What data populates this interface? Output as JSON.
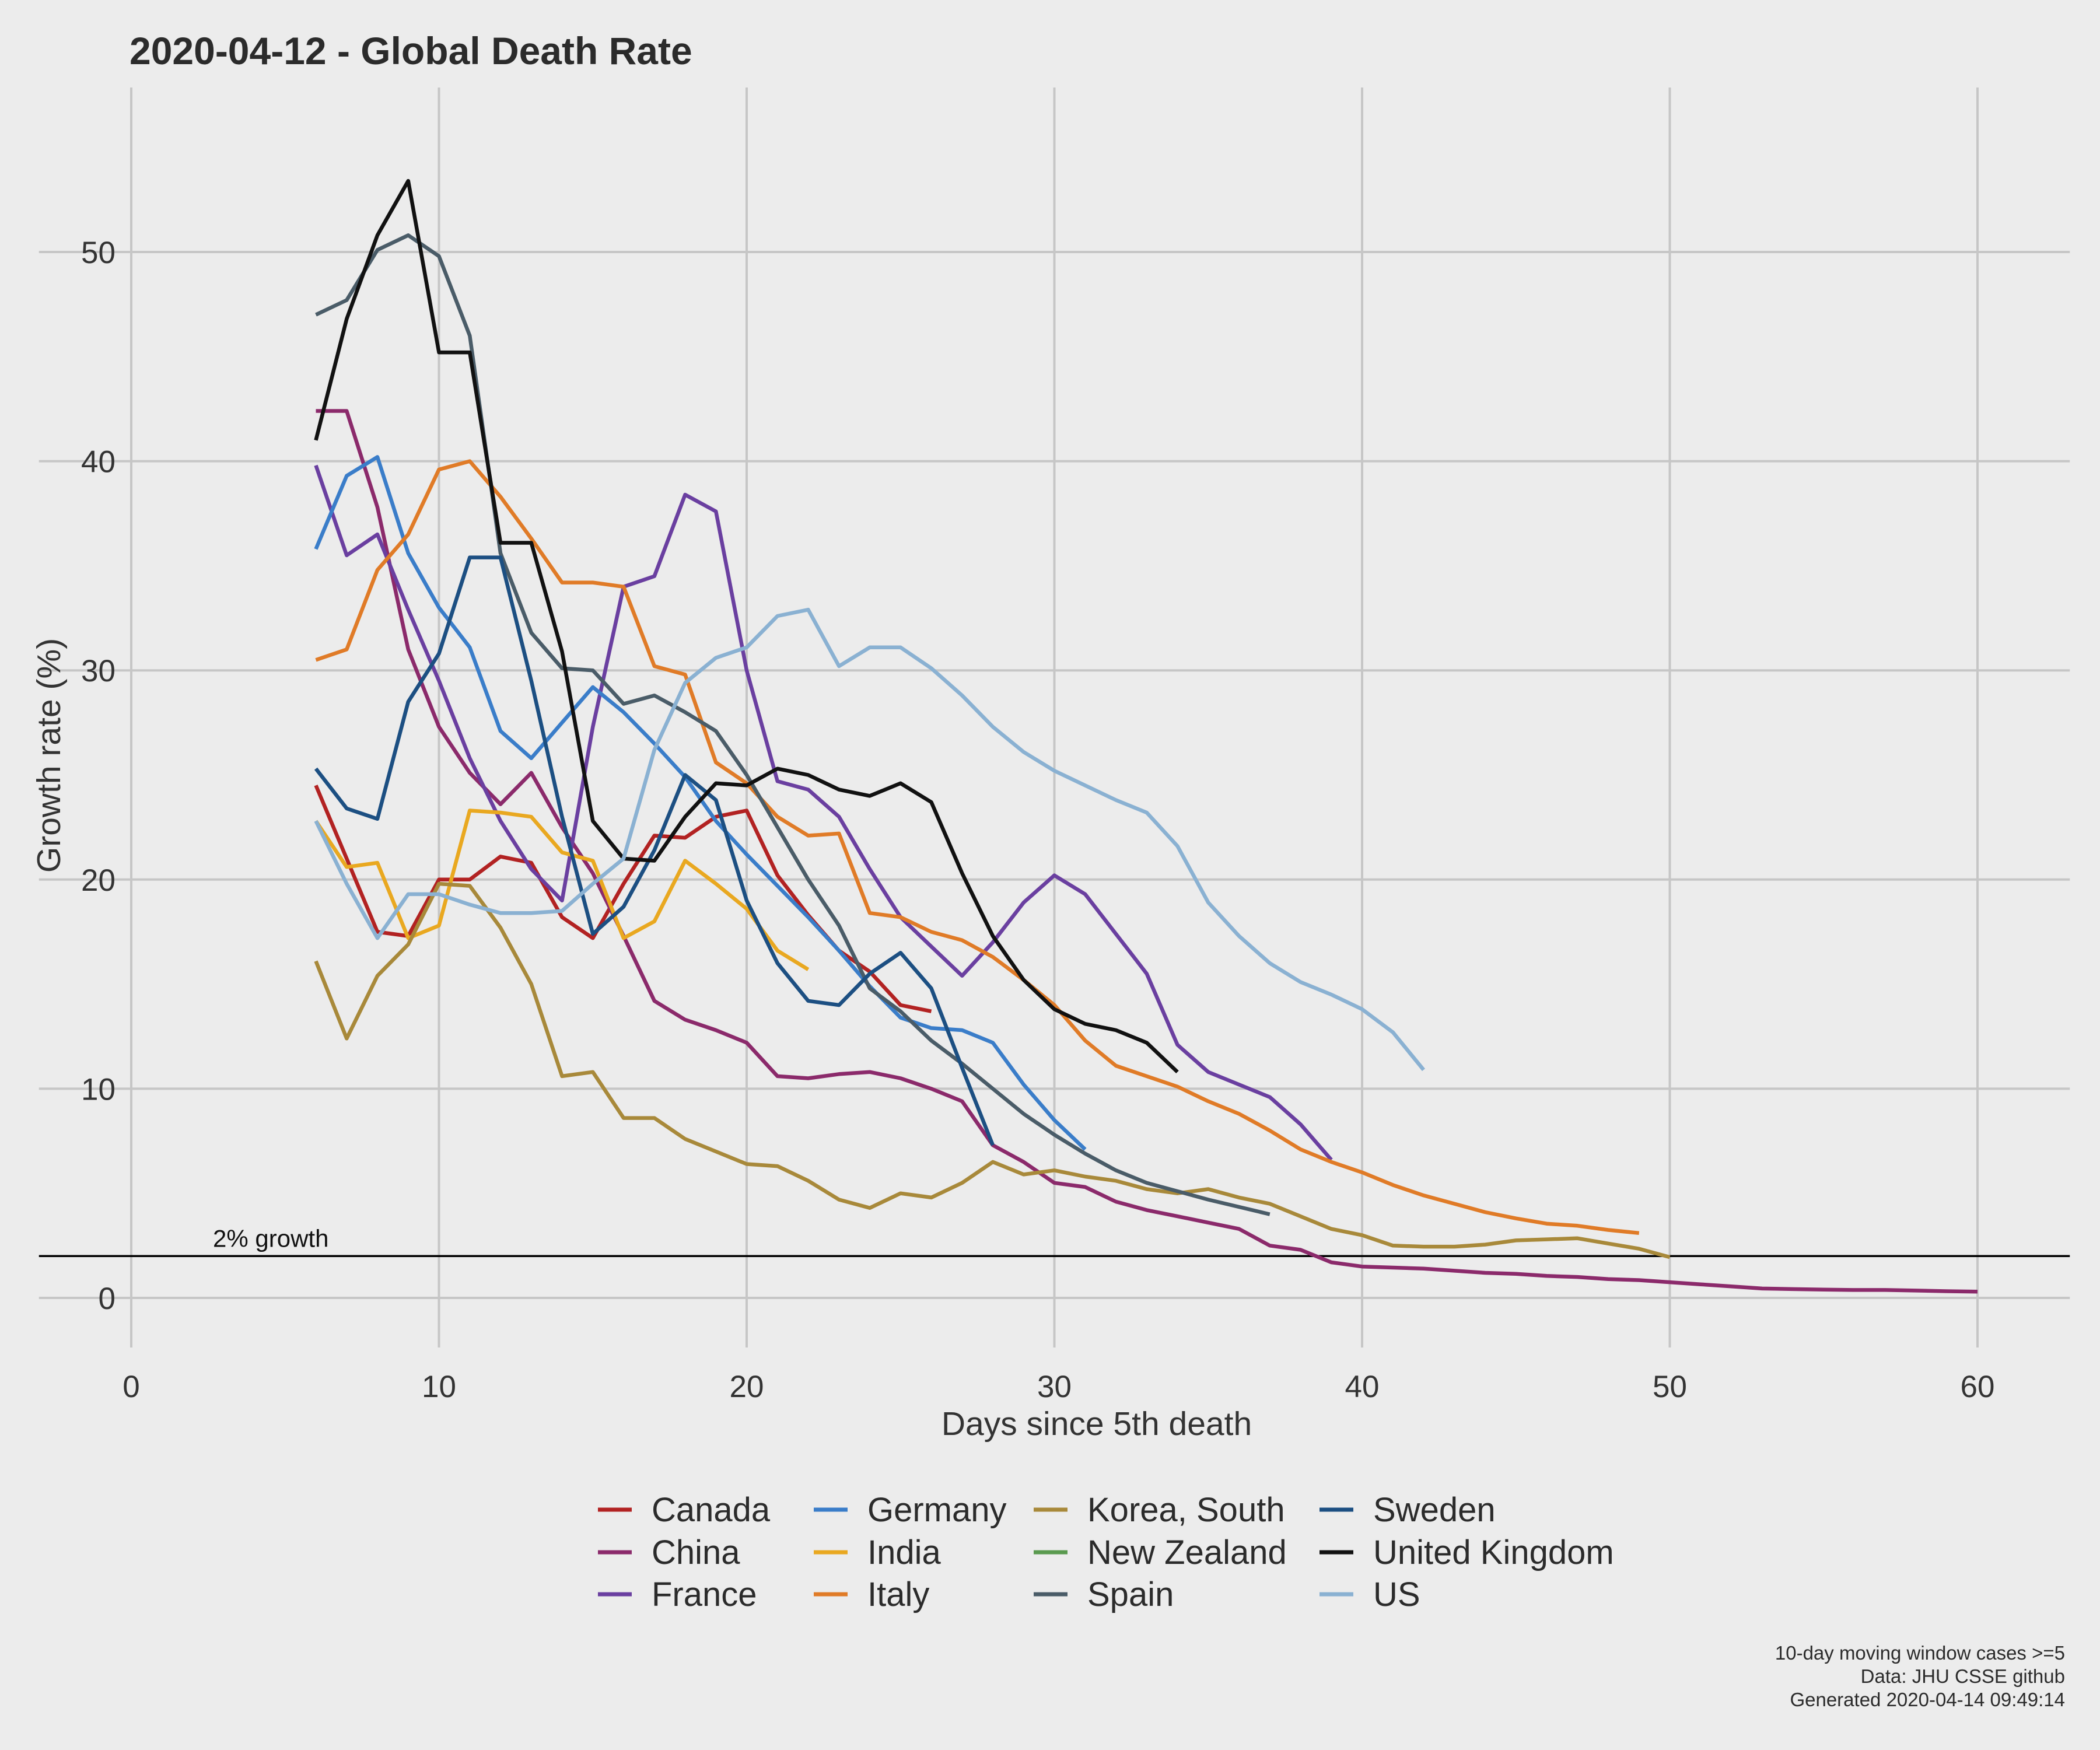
{
  "chart_data": {
    "type": "line",
    "title": "2020-04-12  - Global Death Rate",
    "xlabel": "Days since 5th death",
    "ylabel": "Growth rate (%)",
    "xlim": [
      -3,
      63
    ],
    "ylim": [
      -2.5,
      57
    ],
    "xticks": [
      0,
      10,
      20,
      30,
      40,
      50,
      60
    ],
    "yticks": [
      0,
      10,
      20,
      30,
      40,
      50
    ],
    "grid": true,
    "legend_position": "bottom",
    "reference_line": {
      "y": 2,
      "label": "2% growth"
    },
    "caption": [
      "10-day moving window cases >=5",
      "Data: JHU CSSE github",
      "Generated 2020-04-14 09:49:14"
    ],
    "series": [
      {
        "name": "Canada",
        "color": "#b22222",
        "x0": 6,
        "values": [
          24.5,
          21.0,
          17.5,
          17.3,
          20.0,
          20.0,
          21.1,
          20.8,
          18.2,
          17.2,
          19.8,
          22.1,
          22.0,
          23.0,
          23.3,
          20.2,
          18.3,
          16.6,
          15.6,
          14.0,
          13.7
        ]
      },
      {
        "name": "China",
        "color": "#8b2a6b",
        "x0": 6,
        "values": [
          42.4,
          42.4,
          37.8,
          31.0,
          27.3,
          25.1,
          23.6,
          25.1,
          22.5,
          20.3,
          17.3,
          14.2,
          13.3,
          12.8,
          12.2,
          10.6,
          10.5,
          10.7,
          10.8,
          10.5,
          10.0,
          9.4,
          7.3,
          6.5,
          5.5,
          5.3,
          4.6,
          4.2,
          3.9,
          3.6,
          3.3,
          2.5,
          2.3,
          1.7,
          1.5,
          1.45,
          1.4,
          1.3,
          1.2,
          1.15,
          1.05,
          1.0,
          0.9,
          0.85,
          0.75,
          0.65,
          0.55,
          0.45,
          0.42,
          0.4,
          0.38,
          0.38,
          0.35,
          0.32,
          0.3
        ]
      },
      {
        "name": "France",
        "color": "#6a3fa0",
        "x0": 6,
        "values": [
          39.8,
          35.5,
          36.5,
          32.9,
          29.5,
          25.8,
          22.8,
          20.5,
          19.0,
          27.3,
          34.0,
          34.5,
          38.4,
          37.6,
          30.0,
          24.7,
          24.3,
          23.0,
          20.5,
          18.2,
          16.8,
          15.4,
          17.0,
          18.9,
          20.2,
          19.3,
          17.4,
          15.5,
          12.1,
          10.8,
          10.2,
          9.6,
          8.3,
          6.6
        ]
      },
      {
        "name": "Germany",
        "color": "#3a7dc9",
        "x0": 6,
        "values": [
          35.8,
          39.3,
          40.2,
          35.6,
          33.0,
          31.1,
          27.1,
          25.8,
          27.5,
          29.2,
          28.0,
          26.5,
          24.9,
          22.8,
          21.2,
          19.7,
          18.2,
          16.6,
          14.9,
          13.4,
          12.9,
          12.8,
          12.2,
          10.2,
          8.5,
          7.1
        ]
      },
      {
        "name": "India",
        "color": "#e9a820",
        "x0": 6,
        "values": [
          22.8,
          20.6,
          20.8,
          17.2,
          17.8,
          23.3,
          23.2,
          23.0,
          21.3,
          20.9,
          17.2,
          18.0,
          20.9,
          19.8,
          18.6,
          16.6,
          15.7
        ]
      },
      {
        "name": "Italy",
        "color": "#e07b27",
        "x0": 6,
        "values": [
          30.5,
          31.0,
          34.8,
          36.5,
          39.6,
          40.0,
          38.3,
          36.3,
          34.2,
          34.2,
          34.0,
          30.2,
          29.8,
          25.6,
          24.6,
          23.0,
          22.1,
          22.2,
          18.4,
          18.2,
          17.5,
          17.1,
          16.3,
          15.2,
          14.0,
          12.3,
          11.1,
          10.6,
          10.1,
          9.4,
          8.8,
          8.0,
          7.1,
          6.5,
          6.0,
          5.4,
          4.9,
          4.5,
          4.1,
          3.8,
          3.55,
          3.45,
          3.25,
          3.1
        ]
      },
      {
        "name": "Korea, South",
        "color": "#a8893a",
        "x0": 6,
        "values": [
          16.1,
          12.4,
          15.4,
          16.9,
          19.8,
          19.7,
          17.7,
          15.0,
          10.6,
          10.8,
          8.6,
          8.6,
          7.6,
          7.0,
          6.4,
          6.3,
          5.6,
          4.7,
          4.3,
          5.0,
          4.8,
          5.5,
          6.5,
          5.9,
          6.1,
          5.8,
          5.6,
          5.2,
          5.0,
          5.2,
          4.8,
          4.5,
          3.9,
          3.3,
          3.0,
          2.5,
          2.45,
          2.45,
          2.55,
          2.75,
          2.8,
          2.85,
          2.6,
          2.35,
          1.95
        ]
      },
      {
        "name": "New Zealand",
        "color": "#5a9a4f",
        "x0": 6,
        "values": []
      },
      {
        "name": "Spain",
        "color": "#4a5c68",
        "x0": 6,
        "values": [
          47.0,
          47.7,
          50.1,
          50.8,
          49.8,
          46.0,
          35.6,
          31.8,
          30.1,
          30.0,
          28.4,
          28.8,
          28.0,
          27.1,
          25.0,
          22.5,
          20.0,
          17.8,
          14.8,
          13.7,
          12.3,
          11.2,
          10.0,
          8.8,
          7.8,
          6.9,
          6.1,
          5.5,
          5.1,
          4.7,
          4.35,
          4.0
        ]
      },
      {
        "name": "Sweden",
        "color": "#1c4f82",
        "x0": 6,
        "values": [
          25.3,
          23.4,
          22.9,
          28.5,
          30.8,
          35.4,
          35.4,
          29.5,
          23.0,
          17.4,
          18.7,
          21.4,
          25.0,
          23.8,
          19.0,
          16.0,
          14.2,
          14.0,
          15.5,
          16.5,
          14.8,
          11.0,
          7.3
        ]
      },
      {
        "name": "United Kingdom",
        "color": "#111111",
        "x0": 6,
        "values": [
          41.0,
          46.8,
          50.8,
          53.4,
          45.2,
          45.2,
          36.1,
          36.1,
          30.9,
          22.8,
          21.0,
          20.9,
          23.0,
          24.6,
          24.5,
          25.3,
          25.0,
          24.3,
          24.0,
          24.6,
          23.7,
          20.3,
          17.3,
          15.2,
          13.8,
          13.1,
          12.8,
          12.2,
          10.8
        ]
      },
      {
        "name": "US",
        "color": "#8ab1d2",
        "x0": 6,
        "values": [
          22.8,
          19.8,
          17.2,
          19.3,
          19.3,
          18.8,
          18.4,
          18.4,
          18.5,
          19.8,
          21.0,
          26.2,
          29.4,
          30.6,
          31.1,
          32.6,
          32.9,
          30.2,
          31.1,
          31.1,
          30.1,
          28.8,
          27.3,
          26.1,
          25.2,
          24.5,
          23.8,
          23.2,
          21.6,
          18.9,
          17.3,
          16.0,
          15.1,
          14.5,
          13.8,
          12.7,
          10.9
        ]
      }
    ]
  }
}
